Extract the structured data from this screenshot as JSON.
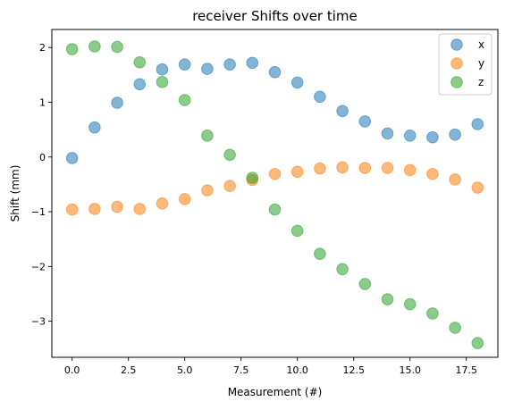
{
  "chart_data": {
    "type": "scatter",
    "title": "receiver Shifts over time",
    "xlabel": "Measurement (#)",
    "ylabel": "Shift (mm)",
    "xlim": [
      -0.9,
      18.9
    ],
    "ylim": [
      -3.66,
      2.33
    ],
    "xticks": [
      0.0,
      2.5,
      5.0,
      7.5,
      10.0,
      12.5,
      15.0,
      17.5
    ],
    "xtick_labels": [
      "0.0",
      "2.5",
      "5.0",
      "7.5",
      "10.0",
      "12.5",
      "15.0",
      "17.5"
    ],
    "yticks": [
      -3,
      -2,
      -1,
      0,
      1,
      2
    ],
    "ytick_labels": [
      "−3",
      "−2",
      "−1",
      "0",
      "1",
      "2"
    ],
    "grid": false,
    "legend_position": "top-right",
    "x": [
      0,
      1,
      2,
      3,
      4,
      5,
      6,
      7,
      8,
      9,
      10,
      11,
      12,
      13,
      14,
      15,
      16,
      17,
      18
    ],
    "series": [
      {
        "name": "x",
        "color": "#1f77b4",
        "values": [
          -0.02,
          0.54,
          0.99,
          1.33,
          1.6,
          1.69,
          1.61,
          1.69,
          1.72,
          1.55,
          1.36,
          1.1,
          0.84,
          0.65,
          0.43,
          0.39,
          0.36,
          0.41,
          0.6
        ]
      },
      {
        "name": "y",
        "color": "#ff7f0e",
        "values": [
          -0.96,
          -0.95,
          -0.91,
          -0.95,
          -0.85,
          -0.77,
          -0.61,
          -0.53,
          -0.42,
          -0.31,
          -0.27,
          -0.21,
          -0.19,
          -0.2,
          -0.2,
          -0.24,
          -0.31,
          -0.41,
          -0.56
        ]
      },
      {
        "name": "z",
        "color": "#2ca02c",
        "values": [
          1.97,
          2.02,
          2.01,
          1.73,
          1.37,
          1.04,
          0.39,
          0.04,
          -0.38,
          -0.96,
          -1.35,
          -1.77,
          -2.05,
          -2.32,
          -2.6,
          -2.69,
          -2.86,
          -3.12,
          -3.4
        ]
      }
    ]
  }
}
